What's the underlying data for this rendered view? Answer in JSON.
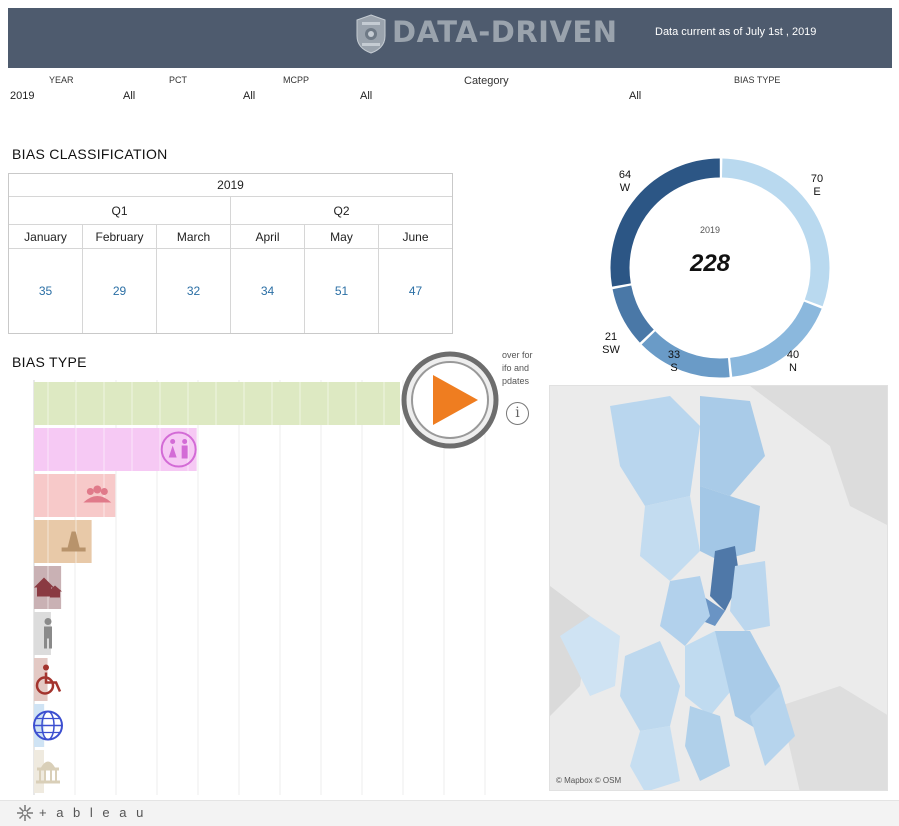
{
  "header": {
    "badge_text": "SEATTLE POLICE",
    "brand": "DATA-DRIVEN",
    "data_current": "Data current as of  July  1st , 2019",
    "bg_color": "#4e5b6e"
  },
  "filters": [
    {
      "label": "YEAR",
      "value": "2019"
    },
    {
      "label": "PCT",
      "value": "All"
    },
    {
      "label": "MCPP",
      "value": "All"
    },
    {
      "label": "",
      "value": "All"
    },
    {
      "label": "Category",
      "value": ""
    },
    {
      "label": "BIAS TYPE",
      "value": "All"
    }
  ],
  "classification": {
    "title": "BIAS CLASSIFICATION",
    "year": "2019",
    "quarters": [
      "Q1",
      "Q2"
    ],
    "months": [
      "January",
      "February",
      "March",
      "April",
      "May",
      "June"
    ],
    "values": [
      "35",
      "29",
      "32",
      "34",
      "51",
      "47"
    ]
  },
  "donut": {
    "year": "2019",
    "total": "228",
    "segments": [
      {
        "label": "E",
        "value": "70",
        "color": "#b9d9ef"
      },
      {
        "label": "N",
        "value": "40",
        "color": "#8bb8dd"
      },
      {
        "label": "S",
        "value": "33",
        "color": "#6a9bc7"
      },
      {
        "label": "SW",
        "value": "21",
        "color": "#4a78a7"
      },
      {
        "label": "W",
        "value": "64",
        "color": "#2c5685"
      }
    ]
  },
  "bias_type": {
    "title": "BIAS TYPE",
    "bars": [
      {
        "icon": "race-icon",
        "value": 108,
        "color": "#dde9c2"
      },
      {
        "icon": "gender-icon",
        "value": 48,
        "color": "#f6c9f4"
      },
      {
        "icon": "group-icon",
        "value": 24,
        "color": "#f7c9c9"
      },
      {
        "icon": "religion-icon",
        "value": 17,
        "color": "#e8c9a8"
      },
      {
        "icon": "home-icon",
        "value": 8,
        "color": "#c9b1b4"
      },
      {
        "icon": "person-icon",
        "value": 5,
        "color": "#dcdcdc"
      },
      {
        "icon": "wheelchair-icon",
        "value": 4,
        "color": "#e3c9c4"
      },
      {
        "icon": "globe-icon",
        "value": 3,
        "color": "#cfe3f4"
      },
      {
        "icon": "capitol-icon",
        "value": 2,
        "color": "#efeadf"
      }
    ]
  },
  "overlay": {
    "hint_lines": [
      "over for",
      "ifo and",
      "pdates"
    ],
    "info": "i"
  },
  "map": {
    "attribution": "© Mapbox © OSM"
  },
  "footer": {
    "brand": "+ a b l e a u"
  }
}
